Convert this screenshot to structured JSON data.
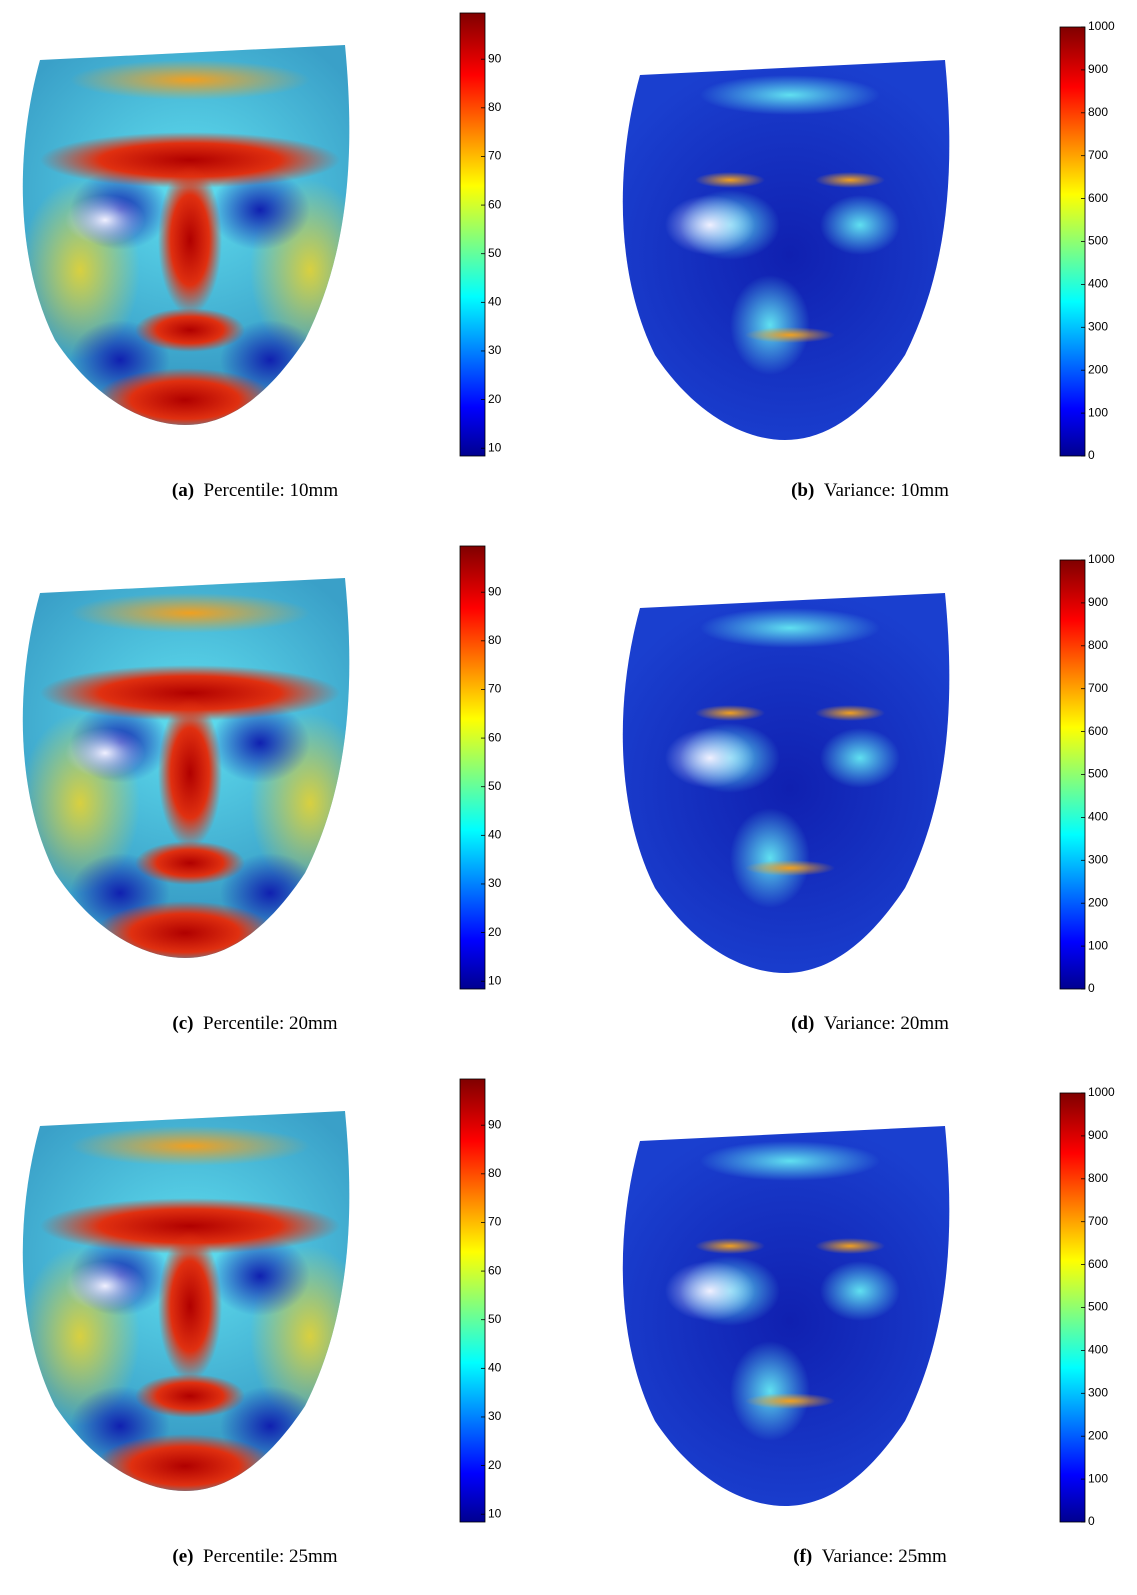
{
  "panels": [
    {
      "label": "(a)",
      "caption": "Percentile: 10mm",
      "kind": "percentile",
      "colorbar": {
        "clim": [
          8.4,
          99.5
        ],
        "ticks": [
          10,
          20,
          30,
          40,
          50,
          60,
          70,
          80,
          90
        ]
      }
    },
    {
      "label": "(b)",
      "caption": "Variance: 10mm",
      "kind": "variance",
      "colorbar": {
        "clim": [
          0,
          1000
        ],
        "ticks": [
          0,
          100,
          200,
          300,
          400,
          500,
          600,
          700,
          800,
          900,
          1000
        ]
      }
    },
    {
      "label": "(c)",
      "caption": "Percentile: 20mm",
      "kind": "percentile",
      "colorbar": {
        "clim": [
          8.4,
          99.5
        ],
        "ticks": [
          10,
          20,
          30,
          40,
          50,
          60,
          70,
          80,
          90
        ]
      }
    },
    {
      "label": "(d)",
      "caption": "Variance: 20mm",
      "kind": "variance",
      "colorbar": {
        "clim": [
          0,
          1000
        ],
        "ticks": [
          0,
          100,
          200,
          300,
          400,
          500,
          600,
          700,
          800,
          900,
          1000
        ]
      }
    },
    {
      "label": "(e)",
      "caption": "Percentile: 25mm",
      "kind": "percentile",
      "colorbar": {
        "clim": [
          8.4,
          99.5
        ],
        "ticks": [
          10,
          20,
          30,
          40,
          50,
          60,
          70,
          80,
          90
        ]
      }
    },
    {
      "label": "(f)",
      "caption": "Variance: 25mm",
      "kind": "variance",
      "colorbar": {
        "clim": [
          0,
          1000
        ],
        "ticks": [
          0,
          100,
          200,
          300,
          400,
          500,
          600,
          700,
          800,
          900,
          1000
        ]
      }
    }
  ]
}
